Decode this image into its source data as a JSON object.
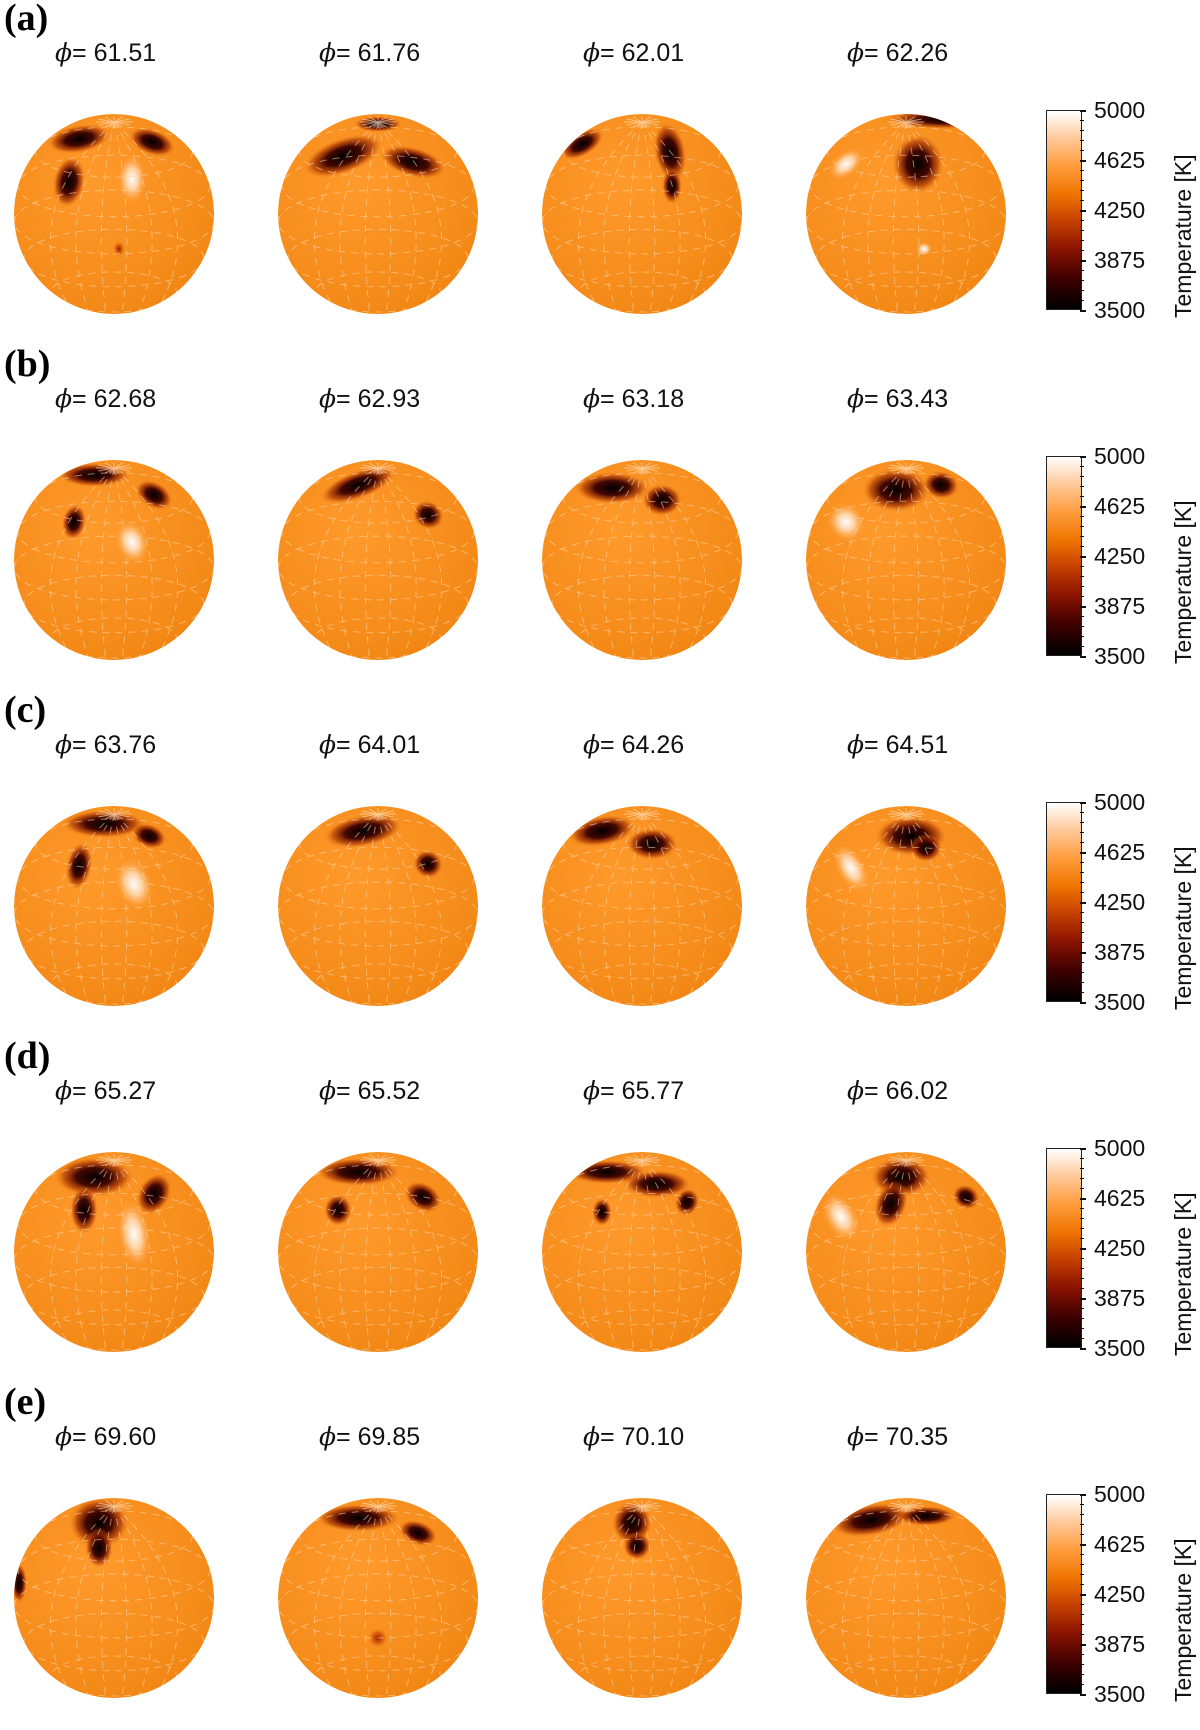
{
  "colorbar": {
    "title": "Temperature [K]",
    "ticks": [
      "5000",
      "4625",
      "4250",
      "3875",
      "3500"
    ],
    "min": 3500,
    "max": 5000,
    "colors": [
      "#000000",
      "#3c0000",
      "#8a1200",
      "#c84200",
      "#ee7400",
      "#ff9c3c",
      "#ffc898",
      "#ffffff"
    ]
  },
  "phase_symbol": "ϕ",
  "panels": [
    {
      "label": "(a)",
      "phases": [
        "61.51",
        "61.76",
        "62.01",
        "62.26"
      ]
    },
    {
      "label": "(b)",
      "phases": [
        "62.68",
        "62.93",
        "63.18",
        "63.43"
      ]
    },
    {
      "label": "(c)",
      "phases": [
        "63.76",
        "64.01",
        "64.26",
        "64.51"
      ]
    },
    {
      "label": "(d)",
      "phases": [
        "65.27",
        "65.52",
        "65.77",
        "66.02"
      ]
    },
    {
      "label": "(e)",
      "phases": [
        "69.60",
        "69.85",
        "70.10",
        "70.35"
      ]
    }
  ]
}
